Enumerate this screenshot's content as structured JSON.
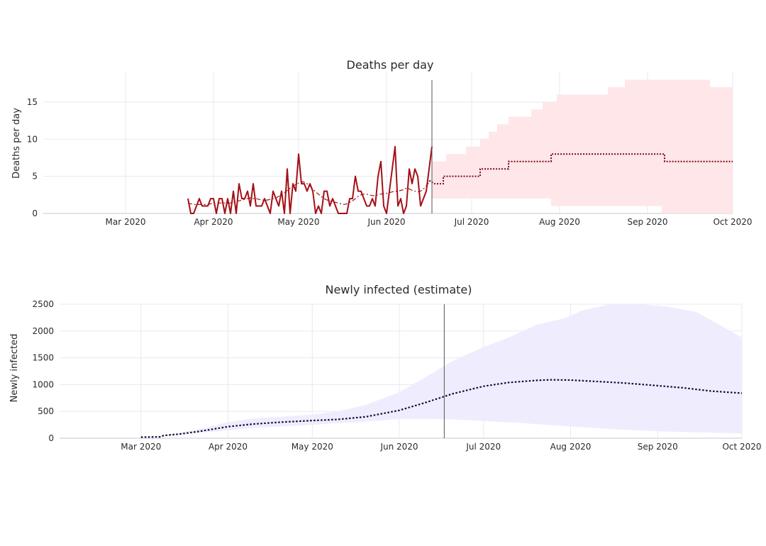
{
  "chart_data": [
    {
      "type": "line",
      "title": "Deaths per day",
      "ylabel": "Deaths per day",
      "xlim": [
        "2020-02-01",
        "2020-10-01"
      ],
      "ylim": [
        0,
        19
      ],
      "yticks": [
        0,
        5,
        10,
        15
      ],
      "xticks": [
        {
          "date": "2020-03-01",
          "label": "Mar 2020"
        },
        {
          "date": "2020-04-01",
          "label": "Apr 2020"
        },
        {
          "date": "2020-05-01",
          "label": "May 2020"
        },
        {
          "date": "2020-06-01",
          "label": "Jun 2020"
        },
        {
          "date": "2020-07-01",
          "label": "Jul 2020"
        },
        {
          "date": "2020-08-01",
          "label": "Aug 2020"
        },
        {
          "date": "2020-09-01",
          "label": "Sep 2020"
        },
        {
          "date": "2020-10-01",
          "label": "Oct 2020"
        }
      ],
      "vline": "2020-06-17",
      "colors": {
        "observed": "#a50f15",
        "forecast": "#7a0a10",
        "band": "#ffe6e9"
      },
      "observed": {
        "start": "2020-03-23",
        "values": [
          2,
          0,
          0,
          1,
          2,
          1,
          1,
          1,
          2,
          2,
          0,
          2,
          2,
          0,
          2,
          0,
          3,
          0,
          4,
          2,
          2,
          3,
          1,
          4,
          1,
          1,
          1,
          2,
          1,
          0,
          3,
          2,
          1,
          3,
          0,
          6,
          0,
          4,
          3,
          8,
          4,
          4,
          3,
          4,
          3,
          0,
          1,
          0,
          3,
          3,
          1,
          2,
          1,
          0,
          0,
          0,
          0,
          2,
          2,
          5,
          3,
          3,
          2,
          1,
          1,
          2,
          1,
          5,
          7,
          1,
          0,
          3,
          6,
          9,
          1,
          2,
          0,
          1,
          6,
          4,
          6,
          5,
          1,
          2,
          3,
          6,
          9
        ]
      },
      "smoothed": {
        "start": "2020-03-23",
        "values": [
          1.4,
          1.3,
          1.2,
          1.2,
          1.2,
          1.2,
          1.2,
          1.2,
          1.3,
          1.3,
          1.3,
          1.4,
          1.4,
          1.4,
          1.4,
          1.4,
          1.5,
          1.6,
          1.7,
          1.8,
          1.9,
          2.0,
          2.1,
          2.0,
          2.0,
          1.9,
          1.8,
          1.8,
          1.8,
          1.9,
          2.0,
          2.1,
          2.3,
          2.5,
          2.8,
          3.1,
          3.4,
          3.7,
          3.9,
          4.1,
          4.3,
          4.2,
          4.0,
          3.7,
          3.3,
          2.9,
          2.6,
          2.3,
          2.0,
          1.8,
          1.7,
          1.6,
          1.5,
          1.4,
          1.3,
          1.2,
          1.3,
          1.5,
          1.7,
          2.0,
          2.3,
          2.5,
          2.6,
          2.6,
          2.5,
          2.4,
          2.4,
          2.5,
          2.6,
          2.7,
          2.7,
          2.8,
          2.9,
          3.0,
          3.0,
          3.1,
          3.2,
          3.4,
          3.3,
          3.1,
          3.0,
          2.9,
          3.0,
          3.3,
          3.7,
          4.2,
          4.6
        ]
      },
      "forecast_median": [
        [
          "2020-06-16",
          4.4
        ],
        [
          "2020-06-18",
          4
        ],
        [
          "2020-06-21",
          4
        ],
        [
          "2020-06-21",
          5
        ],
        [
          "2020-07-04",
          5
        ],
        [
          "2020-07-04",
          6
        ],
        [
          "2020-07-14",
          6
        ],
        [
          "2020-07-14",
          7
        ],
        [
          "2020-07-29",
          7
        ],
        [
          "2020-07-29",
          8
        ],
        [
          "2020-09-07",
          8
        ],
        [
          "2020-09-07",
          7
        ],
        [
          "2020-10-01",
          7
        ]
      ],
      "band_upper": [
        [
          "2020-06-17",
          7
        ],
        [
          "2020-06-22",
          7
        ],
        [
          "2020-06-22",
          8
        ],
        [
          "2020-06-29",
          8
        ],
        [
          "2020-06-29",
          9
        ],
        [
          "2020-07-04",
          9
        ],
        [
          "2020-07-04",
          10
        ],
        [
          "2020-07-07",
          10
        ],
        [
          "2020-07-07",
          11
        ],
        [
          "2020-07-10",
          11
        ],
        [
          "2020-07-10",
          12
        ],
        [
          "2020-07-14",
          12
        ],
        [
          "2020-07-14",
          13
        ],
        [
          "2020-07-22",
          13
        ],
        [
          "2020-07-22",
          14
        ],
        [
          "2020-07-26",
          14
        ],
        [
          "2020-07-26",
          15
        ],
        [
          "2020-07-31",
          15
        ],
        [
          "2020-07-31",
          16
        ],
        [
          "2020-08-18",
          16
        ],
        [
          "2020-08-18",
          17
        ],
        [
          "2020-08-24",
          17
        ],
        [
          "2020-08-24",
          18
        ],
        [
          "2020-09-23",
          18
        ],
        [
          "2020-09-23",
          17
        ],
        [
          "2020-10-01",
          17
        ]
      ],
      "band_lower": [
        [
          "2020-06-17",
          2
        ],
        [
          "2020-07-29",
          2
        ],
        [
          "2020-07-29",
          1
        ],
        [
          "2020-09-06",
          1
        ],
        [
          "2020-09-06",
          0
        ],
        [
          "2020-10-01",
          0
        ]
      ]
    },
    {
      "type": "line",
      "title": "Newly infected (estimate)",
      "ylabel": "Newly infected",
      "xlim": [
        "2020-02-01",
        "2020-10-01"
      ],
      "ylim": [
        0,
        2500
      ],
      "yticks": [
        0,
        500,
        1000,
        1500,
        2000,
        2500
      ],
      "xticks": [
        {
          "date": "2020-03-01",
          "label": "Mar 2020"
        },
        {
          "date": "2020-04-01",
          "label": "Apr 2020"
        },
        {
          "date": "2020-05-01",
          "label": "May 2020"
        },
        {
          "date": "2020-06-01",
          "label": "Jun 2020"
        },
        {
          "date": "2020-07-01",
          "label": "Jul 2020"
        },
        {
          "date": "2020-08-01",
          "label": "Aug 2020"
        },
        {
          "date": "2020-09-01",
          "label": "Sep 2020"
        },
        {
          "date": "2020-10-01",
          "label": "Oct 2020"
        }
      ],
      "vline": "2020-06-17",
      "colors": {
        "median": "#1a0638",
        "band": "#efedfd"
      },
      "median": [
        [
          "2020-03-01",
          20
        ],
        [
          "2020-03-08",
          25
        ],
        [
          "2020-03-09",
          50
        ],
        [
          "2020-03-15",
          80
        ],
        [
          "2020-03-22",
          130
        ],
        [
          "2020-04-01",
          215
        ],
        [
          "2020-04-10",
          265
        ],
        [
          "2020-04-20",
          300
        ],
        [
          "2020-05-01",
          330
        ],
        [
          "2020-05-10",
          350
        ],
        [
          "2020-05-20",
          400
        ],
        [
          "2020-06-01",
          520
        ],
        [
          "2020-06-10",
          660
        ],
        [
          "2020-06-20",
          830
        ],
        [
          "2020-07-01",
          970
        ],
        [
          "2020-07-10",
          1040
        ],
        [
          "2020-07-20",
          1080
        ],
        [
          "2020-07-25",
          1090
        ],
        [
          "2020-08-01",
          1085
        ],
        [
          "2020-08-10",
          1060
        ],
        [
          "2020-08-20",
          1030
        ],
        [
          "2020-09-01",
          980
        ],
        [
          "2020-09-10",
          940
        ],
        [
          "2020-09-20",
          880
        ],
        [
          "2020-10-01",
          840
        ]
      ],
      "band_upper": [
        [
          "2020-03-01",
          20
        ],
        [
          "2020-03-10",
          60
        ],
        [
          "2020-03-20",
          150
        ],
        [
          "2020-04-01",
          300
        ],
        [
          "2020-04-10",
          370
        ],
        [
          "2020-04-20",
          400
        ],
        [
          "2020-05-01",
          440
        ],
        [
          "2020-05-10",
          500
        ],
        [
          "2020-05-20",
          620
        ],
        [
          "2020-06-01",
          860
        ],
        [
          "2020-06-10",
          1130
        ],
        [
          "2020-06-20",
          1440
        ],
        [
          "2020-07-01",
          1700
        ],
        [
          "2020-07-10",
          1880
        ],
        [
          "2020-07-20",
          2120
        ],
        [
          "2020-07-30",
          2240
        ],
        [
          "2020-08-05",
          2380
        ],
        [
          "2020-08-15",
          2500
        ],
        [
          "2020-08-25",
          2500
        ],
        [
          "2020-09-05",
          2450
        ],
        [
          "2020-09-15",
          2350
        ],
        [
          "2020-10-01",
          1880
        ]
      ],
      "band_lower": [
        [
          "2020-03-01",
          20
        ],
        [
          "2020-03-10",
          40
        ],
        [
          "2020-03-20",
          90
        ],
        [
          "2020-04-01",
          150
        ],
        [
          "2020-04-10",
          190
        ],
        [
          "2020-04-20",
          220
        ],
        [
          "2020-05-01",
          250
        ],
        [
          "2020-05-10",
          280
        ],
        [
          "2020-05-20",
          310
        ],
        [
          "2020-06-01",
          360
        ],
        [
          "2020-06-10",
          360
        ],
        [
          "2020-06-20",
          350
        ],
        [
          "2020-07-01",
          320
        ],
        [
          "2020-07-15",
          280
        ],
        [
          "2020-08-01",
          220
        ],
        [
          "2020-08-15",
          170
        ],
        [
          "2020-09-01",
          130
        ],
        [
          "2020-09-15",
          110
        ],
        [
          "2020-10-01",
          90
        ]
      ]
    }
  ]
}
